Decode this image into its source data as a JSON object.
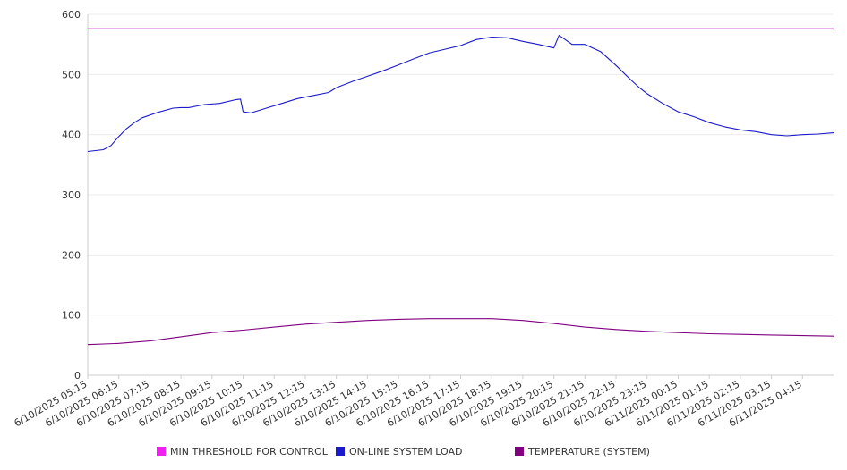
{
  "chart_data": {
    "type": "line",
    "ylim": [
      0,
      600
    ],
    "y_ticks": [
      "0",
      "100",
      "200",
      "300",
      "400",
      "500",
      "600"
    ],
    "x_tick_labels": [
      "6/10/2025 05:15",
      "6/10/2025 06:15",
      "6/10/2025 07:15",
      "6/10/2025 08:15",
      "6/10/2025 09:15",
      "6/10/2025 10:15",
      "6/10/2025 11:15",
      "6/10/2025 12:15",
      "6/10/2025 13:15",
      "6/10/2025 14:15",
      "6/10/2025 15:15",
      "6/10/2025 16:15",
      "6/10/2025 17:15",
      "6/10/2025 18:15",
      "6/10/2025 19:15",
      "6/10/2025 20:15",
      "6/10/2025 21:15",
      "6/10/2025 22:15",
      "6/10/2025 23:15",
      "6/11/2025 00:15",
      "6/11/2025 01:15",
      "6/11/2025 02:15",
      "6/11/2025 03:15",
      "6/11/2025 04:15"
    ],
    "x_end": "6/11/2025 05:15",
    "grid": true,
    "legend_position": "bottom",
    "series": [
      {
        "name": "MIN THRESHOLD FOR CONTROL",
        "color": "#cc33cc",
        "x": [
          "6/10/2025 05:15",
          "6/11/2025 05:15"
        ],
        "y": [
          576,
          576
        ]
      },
      {
        "name": "ON-LINE SYSTEM LOAD",
        "color": "#1a1acc",
        "x": [
          "6/10/2025 05:15",
          "6/10/2025 05:45",
          "6/10/2025 06:00",
          "6/10/2025 06:15",
          "6/10/2025 06:30",
          "6/10/2025 06:45",
          "6/10/2025 07:00",
          "6/10/2025 07:30",
          "6/10/2025 08:00",
          "6/10/2025 08:15",
          "6/10/2025 08:30",
          "6/10/2025 09:00",
          "6/10/2025 09:30",
          "6/10/2025 10:00",
          "6/10/2025 10:10",
          "6/10/2025 10:15",
          "6/10/2025 10:30",
          "6/10/2025 11:00",
          "6/10/2025 11:30",
          "6/10/2025 12:00",
          "6/10/2025 12:30",
          "6/10/2025 13:00",
          "6/10/2025 13:15",
          "6/10/2025 13:45",
          "6/10/2025 14:15",
          "6/10/2025 14:45",
          "6/10/2025 15:15",
          "6/10/2025 15:45",
          "6/10/2025 16:15",
          "6/10/2025 16:45",
          "6/10/2025 17:15",
          "6/10/2025 17:45",
          "6/10/2025 18:15",
          "6/10/2025 18:45",
          "6/10/2025 19:00",
          "6/10/2025 19:15",
          "6/10/2025 19:45",
          "6/10/2025 20:15",
          "6/10/2025 20:25",
          "6/10/2025 20:35",
          "6/10/2025 20:50",
          "6/10/2025 21:15",
          "6/10/2025 21:45",
          "6/10/2025 22:15",
          "6/10/2025 22:45",
          "6/10/2025 23:00",
          "6/10/2025 23:15",
          "6/10/2025 23:45",
          "6/11/2025 00:15",
          "6/11/2025 00:45",
          "6/11/2025 01:15",
          "6/11/2025 01:45",
          "6/11/2025 02:15",
          "6/11/2025 02:45",
          "6/11/2025 03:15",
          "6/11/2025 03:45",
          "6/11/2025 04:15",
          "6/11/2025 04:45",
          "6/11/2025 05:15"
        ],
        "y": [
          372,
          375,
          382,
          397,
          410,
          420,
          428,
          437,
          444,
          445,
          445,
          450,
          452,
          458,
          459,
          438,
          436,
          444,
          452,
          460,
          465,
          470,
          478,
          488,
          497,
          506,
          516,
          526,
          536,
          542,
          548,
          558,
          562,
          561,
          558,
          555,
          550,
          544,
          565,
          559,
          550,
          550,
          538,
          515,
          490,
          478,
          468,
          452,
          438,
          430,
          420,
          413,
          408,
          405,
          400,
          398,
          400,
          401,
          403
        ]
      },
      {
        "name": "TEMPERATURE (SYSTEM)",
        "color": "#800080",
        "x": [
          "6/10/2025 05:15",
          "6/10/2025 06:15",
          "6/10/2025 07:15",
          "6/10/2025 08:15",
          "6/10/2025 09:15",
          "6/10/2025 10:15",
          "6/10/2025 11:15",
          "6/10/2025 12:15",
          "6/10/2025 13:15",
          "6/10/2025 14:15",
          "6/10/2025 15:15",
          "6/10/2025 16:15",
          "6/10/2025 17:15",
          "6/10/2025 18:15",
          "6/10/2025 19:15",
          "6/10/2025 20:15",
          "6/10/2025 21:15",
          "6/10/2025 22:15",
          "6/10/2025 23:15",
          "6/11/2025 00:15",
          "6/11/2025 01:15",
          "6/11/2025 02:15",
          "6/11/2025 03:15",
          "6/11/2025 04:15",
          "6/11/2025 05:15"
        ],
        "y": [
          51,
          53,
          57,
          64,
          71,
          75,
          80,
          85,
          88,
          91,
          93,
          94,
          94,
          94,
          91,
          86,
          80,
          76,
          73,
          71,
          69,
          68,
          67,
          66,
          65
        ]
      }
    ]
  }
}
